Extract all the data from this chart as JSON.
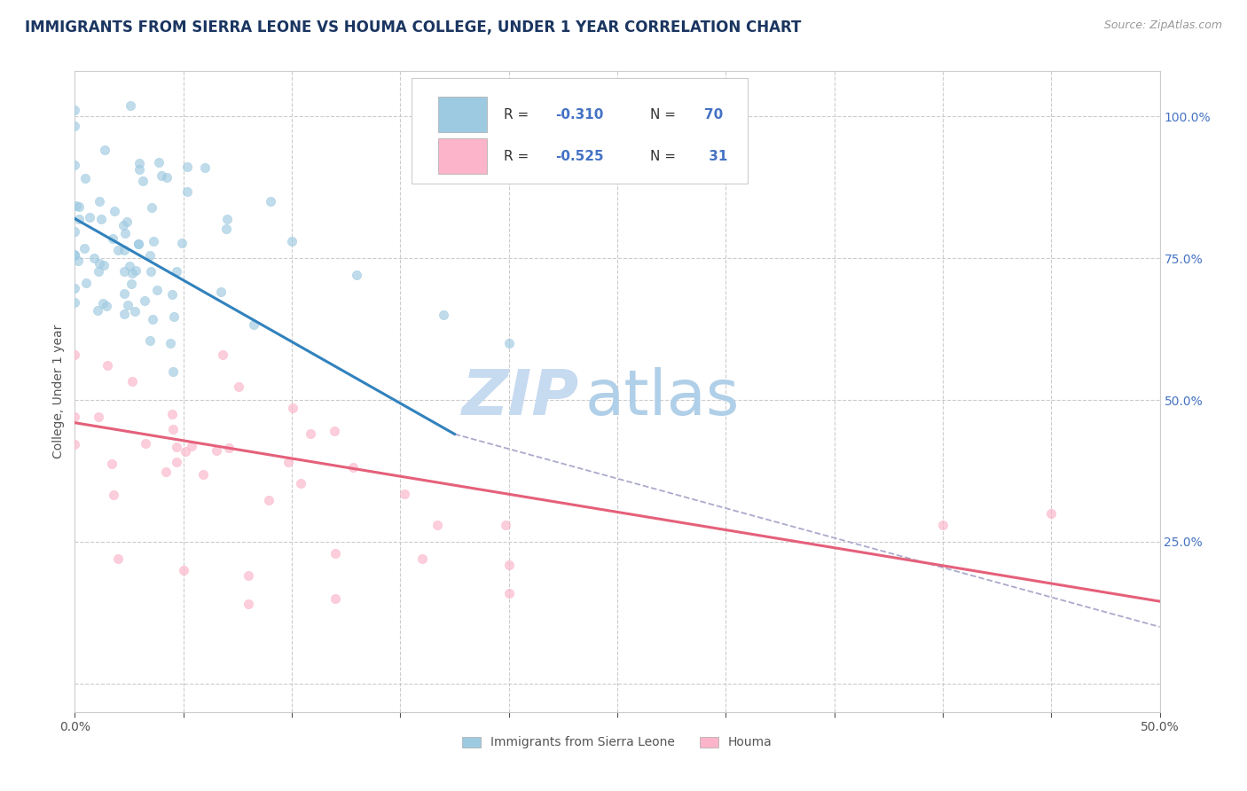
{
  "title": "IMMIGRANTS FROM SIERRA LEONE VS HOUMA COLLEGE, UNDER 1 YEAR CORRELATION CHART",
  "source_text": "Source: ZipAtlas.com",
  "ylabel": "College, Under 1 year",
  "xlim": [
    0.0,
    0.5
  ],
  "ylim": [
    -0.05,
    1.08
  ],
  "xtick_positions": [
    0.0,
    0.05,
    0.1,
    0.15,
    0.2,
    0.25,
    0.3,
    0.35,
    0.4,
    0.45,
    0.5
  ],
  "xticklabels": [
    "0.0%",
    "",
    "",
    "",
    "",
    "",
    "",
    "",
    "",
    "",
    "50.0%"
  ],
  "ytick_positions": [
    0.0,
    0.25,
    0.5,
    0.75,
    1.0
  ],
  "yticklabels_right": [
    "",
    "25.0%",
    "50.0%",
    "75.0%",
    "100.0%"
  ],
  "legend_label1": "Immigrants from Sierra Leone",
  "legend_label2": "Houma",
  "r1": -0.31,
  "n1": 70,
  "r2": -0.525,
  "n2": 31,
  "blue_dot_color": "#9ecae1",
  "pink_dot_color": "#fbb4c9",
  "blue_line_color": "#3182bd",
  "pink_line_color": "#e5607a",
  "dashed_line_color": "#aec7e8",
  "watermark_zip_color": "#c6daf0",
  "watermark_atlas_color": "#b0cfe8",
  "background_color": "#ffffff",
  "title_color": "#1a3560",
  "tick_color": "#4472c4",
  "grid_color": "#cccccc",
  "legend_text_color": "#333333",
  "legend_value_color": "#4472c4",
  "source_color": "#999999",
  "ylabel_color": "#555555",
  "blue_line_x0": 0.0,
  "blue_line_y0": 0.82,
  "blue_line_x1": 0.175,
  "blue_line_y1": 0.44,
  "pink_line_x0": 0.0,
  "pink_line_y0": 0.46,
  "pink_line_x1": 0.5,
  "pink_line_y1": 0.145,
  "dash_line_x0": 0.175,
  "dash_line_y0": 0.44,
  "dash_line_x1": 0.5,
  "dash_line_y1": 0.1
}
